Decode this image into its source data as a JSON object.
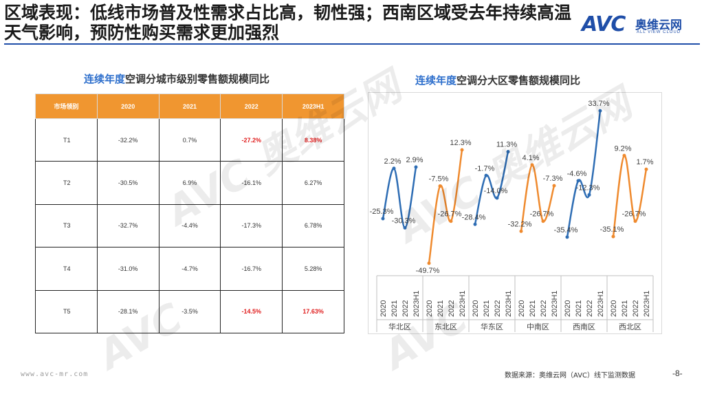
{
  "slide": {
    "title": "区域表现：低线市场普及性需求占比高，韧性强；西南区域受去年持续高温天气影响，预防性购买需求更加强烈",
    "logo_mark": "AVC",
    "logo_cn": "奥维云网",
    "logo_en": "ALL VIEW CLOUD",
    "url": "www.avc-mr.com",
    "source": "数据来源：奥维云网（AVC）线下监测数据",
    "page": "-8-",
    "brand_color": "#1f4ea8",
    "accent_color": "#f09630"
  },
  "table": {
    "title_highlight": "连续年度",
    "title_rest": "空调分城市级别零售额规模同比",
    "headers": [
      "市场领别",
      "2020",
      "2021",
      "2022",
      "2023H1"
    ],
    "rows": [
      {
        "cells": [
          "T1",
          "-32.2%",
          "0.7%",
          "-27.2%",
          "8.38%"
        ],
        "highlight": [
          false,
          false,
          false,
          true,
          true
        ]
      },
      {
        "cells": [
          "T2",
          "-30.5%",
          "6.9%",
          "-16.1%",
          "6.27%"
        ],
        "highlight": [
          false,
          false,
          false,
          false,
          false
        ]
      },
      {
        "cells": [
          "T3",
          "-32.7%",
          "-4.4%",
          "-17.3%",
          "6.78%"
        ],
        "highlight": [
          false,
          false,
          false,
          false,
          false
        ]
      },
      {
        "cells": [
          "T4",
          "-31.0%",
          "-4.7%",
          "-16.7%",
          "5.28%"
        ],
        "highlight": [
          false,
          false,
          false,
          false,
          false
        ]
      },
      {
        "cells": [
          "T5",
          "-28.1%",
          "-3.5%",
          "-14.5%",
          "17.63%"
        ],
        "highlight": [
          false,
          false,
          false,
          true,
          true
        ]
      }
    ]
  },
  "chart_data": {
    "type": "line",
    "title_highlight": "连续年度",
    "title_rest": "空调分大区零售额规模同比",
    "categories": [
      "2020",
      "2021",
      "2022",
      "2023H1"
    ],
    "ylim": [
      -55,
      36
    ],
    "grid": false,
    "series": [
      {
        "name": "华北区",
        "color": "#2e6db4",
        "values": [
          -25.3,
          2.2,
          -30.3,
          2.9
        ],
        "labels": [
          "-25.3%",
          "2.2%",
          "-30.3%",
          "2.9%"
        ]
      },
      {
        "name": "东北区",
        "color": "#ef8a2e",
        "values": [
          -49.7,
          -7.5,
          -26.7,
          12.3
        ],
        "labels": [
          "-49.7%",
          "-7.5%",
          "-26.7%",
          "12.3%"
        ]
      },
      {
        "name": "华东区",
        "color": "#2e6db4",
        "values": [
          -28.4,
          -1.7,
          -14.0,
          11.3
        ],
        "labels": [
          "-28.4%",
          "-1.7%",
          "-14.0%",
          "11.3%"
        ]
      },
      {
        "name": "中南区",
        "color": "#ef8a2e",
        "values": [
          -32.2,
          4.1,
          -26.7,
          -7.3
        ],
        "labels": [
          "-32.2%",
          "4.1%",
          "-26.7%",
          "-7.3%"
        ]
      },
      {
        "name": "西南区",
        "color": "#2e6db4",
        "values": [
          -35.4,
          -4.6,
          -12.3,
          33.7
        ],
        "labels": [
          "-35.4%",
          "-4.6%",
          "-12.3%",
          "33.7%"
        ]
      },
      {
        "name": "西北区",
        "color": "#ef8a2e",
        "values": [
          -35.1,
          9.2,
          -26.7,
          1.7
        ],
        "labels": [
          "-35.1%",
          "9.2%",
          "-26.7%",
          "1.7%"
        ]
      }
    ]
  }
}
